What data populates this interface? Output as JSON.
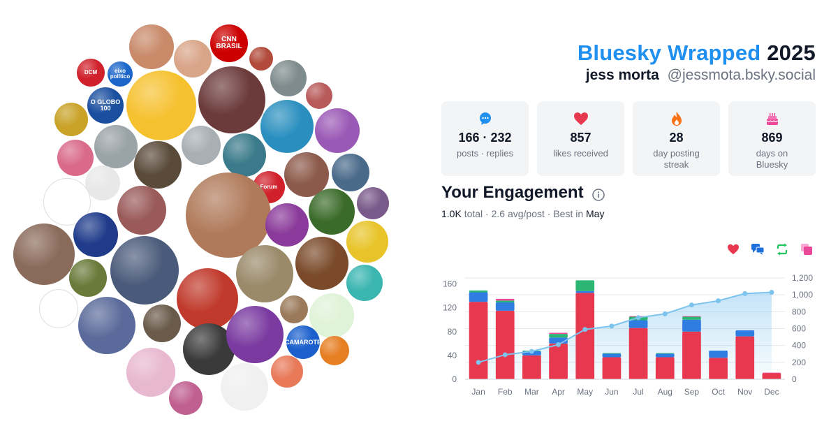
{
  "header": {
    "title_brand": "Bluesky Wrapped",
    "title_year": "2025",
    "display_name": "jess morta",
    "handle": "@jessmota.bsky.social"
  },
  "stats": [
    {
      "icon": "speech-bubble-icon",
      "value": "166 · 232",
      "label": "posts · replies",
      "color": "#1f8ff0"
    },
    {
      "icon": "heart-icon",
      "value": "857",
      "label": "likes received",
      "color": "#e8384f"
    },
    {
      "icon": "flame-icon",
      "value": "28",
      "label": "day posting streak",
      "color": "#f97316"
    },
    {
      "icon": "cake-icon",
      "value": "869",
      "label": "days on Bluesky",
      "color": "#ec4899"
    }
  ],
  "engagement": {
    "title": "Your Engagement",
    "total": "1.0K",
    "total_suffix": " total · 2.6 avg/post · Best in ",
    "best": "May"
  },
  "legend": [
    {
      "icon": "heart-icon",
      "color": "#e8384f"
    },
    {
      "icon": "reply-icon",
      "color": "#1e6fd9"
    },
    {
      "icon": "repost-icon",
      "color": "#22c55e"
    },
    {
      "icon": "quote-icon",
      "color": "#ec4899"
    }
  ],
  "avatars": [
    {
      "name": "avatar-user",
      "color": "#c98a6a"
    },
    {
      "name": "avatar-user",
      "color": "#d9a589"
    },
    {
      "name": "cnn-brasil-logo",
      "label": "CNN\nBRASIL",
      "color": "#cc0000"
    },
    {
      "name": "avatar-user",
      "color": "#b14a3a"
    },
    {
      "name": "avatar-user",
      "color": "#7f8c8d"
    },
    {
      "name": "dcm-logo",
      "label": "DCM",
      "color": "#d0202b"
    },
    {
      "name": "eixo-politico-logo",
      "label": "eixo\npolítico",
      "color": "#1c66c9"
    },
    {
      "name": "avatar-cartoon-jake",
      "color": "#f6c12e"
    },
    {
      "name": "avatar-user",
      "color": "#6b3a3a"
    },
    {
      "name": "avatar-user",
      "color": "#b85a5a"
    },
    {
      "name": "o-globo-100-logo",
      "label": "O GLOBO\n100",
      "color": "#1a4fa0"
    },
    {
      "name": "avatar-user",
      "color": "#c9a227"
    },
    {
      "name": "avatar-birdcage",
      "color": "#2a8fbf"
    },
    {
      "name": "avatar-cartoon-glasses",
      "color": "#9b59b6"
    },
    {
      "name": "avatar-user",
      "color": "#9aa3a8"
    },
    {
      "name": "avatar-user",
      "color": "#5a4a3a"
    },
    {
      "name": "avatar-user",
      "color": "#a8b0b4"
    },
    {
      "name": "avatar-user",
      "color": "#3a7a8a"
    },
    {
      "name": "avatar-user",
      "color": "#d96a8a"
    },
    {
      "name": "avatar-user",
      "color": "#8c5a4a"
    },
    {
      "name": "avatar-user",
      "color": "#4a6a8a"
    },
    {
      "name": "avatar-cartoon-face",
      "color": "#e8e8e8"
    },
    {
      "name": "avatar-user",
      "color": "#ffffff"
    },
    {
      "name": "forum-logo",
      "label": "Forum",
      "color": "#d0202b"
    },
    {
      "name": "avatar-user",
      "color": "#7a5a8a"
    },
    {
      "name": "avatar-user",
      "color": "#b07a5a"
    },
    {
      "name": "avatar-user",
      "color": "#9a5a5a"
    },
    {
      "name": "avatar-toucan",
      "color": "#3b6b2a"
    },
    {
      "name": "avatar-user",
      "color": "#8a6a5a"
    },
    {
      "name": "avatar-cartoon-girl",
      "color": "#1f3b8a"
    },
    {
      "name": "avatar-user-main",
      "color": "#8a3a9a"
    },
    {
      "name": "avatar-emu",
      "color": "#e8c42a"
    },
    {
      "name": "avatar-user",
      "color": "#6a7a3a"
    },
    {
      "name": "avatar-user",
      "color": "#4a5a7a"
    },
    {
      "name": "avatar-user",
      "color": "#c0392b"
    },
    {
      "name": "avatar-goat",
      "color": "#9a8a6a"
    },
    {
      "name": "avatar-cartoon-man",
      "color": "#7a4a2a"
    },
    {
      "name": "avatar-cartoon-face",
      "color": "#3ab5b0"
    },
    {
      "name": "avatar-duck",
      "color": "#ffffff"
    },
    {
      "name": "avatar-user",
      "color": "#5a6a9a"
    },
    {
      "name": "avatar-user",
      "color": "#6a5a4a"
    },
    {
      "name": "avatar-user",
      "color": "#3a3a3a"
    },
    {
      "name": "avatar-user",
      "color": "#7a3aa0"
    },
    {
      "name": "avatar-user",
      "color": "#9a7a5a"
    },
    {
      "name": "avatar-cartoon-man-glasses",
      "color": "#dff3d8"
    },
    {
      "name": "camarote-logo",
      "label": "CAMAROTE",
      "color": "#1a5fcc"
    },
    {
      "name": "avatar-cartoon-crash",
      "color": "#e67e22"
    },
    {
      "name": "avatar-user",
      "color": "#e8b8d0"
    },
    {
      "name": "avatar-user",
      "color": "#c06090"
    },
    {
      "name": "avatar-cartoon-tiger",
      "color": "#f0f0f0"
    },
    {
      "name": "avatar-cartoon-face",
      "color": "#e87a5a"
    },
    {
      "name": "avatar-user",
      "color": "#5a5a5a"
    },
    {
      "name": "avatar-user",
      "color": "#8a9a7a"
    }
  ],
  "chart_data": {
    "type": "bar",
    "categories": [
      "Jan",
      "Feb",
      "Mar",
      "Apr",
      "May",
      "Jun",
      "Jul",
      "Aug",
      "Sep",
      "Oct",
      "Nov",
      "Dec"
    ],
    "series": [
      {
        "color": "#e8384f",
        "values": [
          130,
          115,
          40,
          60,
          145,
          37,
          86,
          37,
          80,
          36,
          72,
          10
        ]
      },
      {
        "color": "#2f7de1",
        "values": [
          16,
          14,
          7,
          10,
          3,
          6,
          13,
          6,
          20,
          12,
          10,
          0
        ]
      },
      {
        "color": "#2bb673",
        "values": [
          3,
          3,
          1,
          6,
          18,
          1,
          6,
          1,
          5,
          0,
          0,
          0
        ]
      },
      {
        "color": "#ec4899",
        "values": [
          0,
          3,
          0,
          2,
          0,
          0,
          1,
          0,
          1,
          0,
          0,
          1
        ]
      }
    ],
    "cumulative": {
      "color": "#7cc3ee",
      "values": [
        200,
        290,
        330,
        410,
        590,
        630,
        730,
        775,
        880,
        930,
        1015,
        1030
      ]
    },
    "ylim_left": [
      0,
      170
    ],
    "ylim_right": [
      0,
      1200
    ],
    "yticks_left": [
      0,
      40,
      80,
      120,
      160
    ],
    "yticks_right": [
      "0",
      "200",
      "400",
      "600",
      "800",
      "1,000",
      "1,200"
    ]
  }
}
